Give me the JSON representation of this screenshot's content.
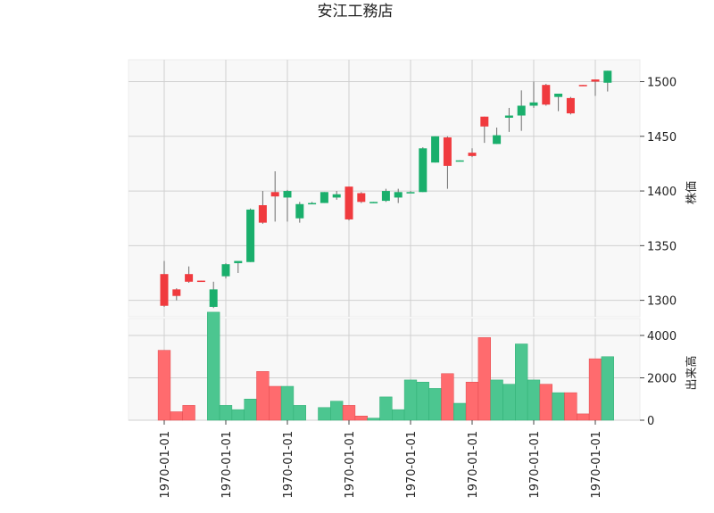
{
  "chart_data": {
    "type": "candlestick",
    "title": "安江工務店",
    "price_axis_label": "株価",
    "volume_axis_label": "出来高",
    "price_ticks": [
      1300,
      1350,
      1400,
      1450,
      1500
    ],
    "price_range": [
      1285,
      1520
    ],
    "volume_ticks": [
      0,
      2000,
      4000
    ],
    "volume_range": [
      0,
      4800
    ],
    "x_tick_labels": [
      "1970-01-01",
      "1970-01-01",
      "1970-01-01",
      "1970-01-01",
      "1970-01-01",
      "1970-01-01",
      "1970-01-01",
      "1970-01-01"
    ],
    "x_tick_positions": [
      0,
      5,
      10,
      15,
      20,
      25,
      30,
      35
    ],
    "up_color": "#1aaf6c",
    "down_color": "#f03a3e",
    "volume_up_color": "#4cc690",
    "volume_down_color": "#ff6b6e",
    "grid": true,
    "candles": [
      {
        "open": 1324,
        "high": 1336,
        "low": 1294,
        "close": 1295,
        "volume": 3300
      },
      {
        "open": 1310,
        "high": 1311,
        "low": 1300,
        "close": 1304,
        "volume": 400
      },
      {
        "open": 1324,
        "high": 1331,
        "low": 1316,
        "close": 1317,
        "volume": 700
      },
      {
        "open": 1318,
        "high": 1318,
        "low": 1317,
        "close": 1317,
        "volume": 0
      },
      {
        "open": 1294,
        "high": 1317,
        "low": 1293,
        "close": 1310,
        "volume": 5100
      },
      {
        "open": 1322,
        "high": 1334,
        "low": 1320,
        "close": 1333,
        "volume": 700
      },
      {
        "open": 1334,
        "high": 1336,
        "low": 1325,
        "close": 1336,
        "volume": 500
      },
      {
        "open": 1335,
        "high": 1384,
        "low": 1335,
        "close": 1383,
        "volume": 1000
      },
      {
        "open": 1387,
        "high": 1400,
        "low": 1370,
        "close": 1371,
        "volume": 2300
      },
      {
        "open": 1399,
        "high": 1418,
        "low": 1372,
        "close": 1395,
        "volume": 1600
      },
      {
        "open": 1394,
        "high": 1401,
        "low": 1372,
        "close": 1400,
        "volume": 1600
      },
      {
        "open": 1375,
        "high": 1390,
        "low": 1371,
        "close": 1388,
        "volume": 700
      },
      {
        "open": 1389,
        "high": 1390,
        "low": 1389,
        "close": 1389,
        "volume": 0
      },
      {
        "open": 1389,
        "high": 1399,
        "low": 1389,
        "close": 1399,
        "volume": 600
      },
      {
        "open": 1394,
        "high": 1400,
        "low": 1392,
        "close": 1397,
        "volume": 900
      },
      {
        "open": 1404,
        "high": 1404,
        "low": 1373,
        "close": 1374,
        "volume": 700
      },
      {
        "open": 1398,
        "high": 1399,
        "low": 1389,
        "close": 1390,
        "volume": 200
      },
      {
        "open": 1390,
        "high": 1390,
        "low": 1389,
        "close": 1390,
        "volume": 100
      },
      {
        "open": 1391,
        "high": 1402,
        "low": 1390,
        "close": 1400,
        "volume": 1100
      },
      {
        "open": 1394,
        "high": 1402,
        "low": 1389,
        "close": 1399,
        "volume": 500
      },
      {
        "open": 1399,
        "high": 1400,
        "low": 1399,
        "close": 1399,
        "volume": 1900
      },
      {
        "open": 1399,
        "high": 1440,
        "low": 1399,
        "close": 1439,
        "volume": 1800
      },
      {
        "open": 1426,
        "high": 1450,
        "low": 1426,
        "close": 1450,
        "volume": 1500
      },
      {
        "open": 1449,
        "high": 1450,
        "low": 1402,
        "close": 1423,
        "volume": 2200
      },
      {
        "open": 1427,
        "high": 1428,
        "low": 1427,
        "close": 1428,
        "volume": 800
      },
      {
        "open": 1435,
        "high": 1439,
        "low": 1431,
        "close": 1432,
        "volume": 1800
      },
      {
        "open": 1468,
        "high": 1468,
        "low": 1444,
        "close": 1459,
        "volume": 3900
      },
      {
        "open": 1443,
        "high": 1458,
        "low": 1443,
        "close": 1451,
        "volume": 1900
      },
      {
        "open": 1467,
        "high": 1476,
        "low": 1454,
        "close": 1469,
        "volume": 1700
      },
      {
        "open": 1469,
        "high": 1492,
        "low": 1455,
        "close": 1478,
        "volume": 3600
      },
      {
        "open": 1478,
        "high": 1500,
        "low": 1476,
        "close": 1481,
        "volume": 1900
      },
      {
        "open": 1497,
        "high": 1498,
        "low": 1478,
        "close": 1479,
        "volume": 1700
      },
      {
        "open": 1486,
        "high": 1489,
        "low": 1473,
        "close": 1489,
        "volume": 1300
      },
      {
        "open": 1485,
        "high": 1486,
        "low": 1470,
        "close": 1471,
        "volume": 1300
      },
      {
        "open": 1497,
        "high": 1497,
        "low": 1496,
        "close": 1496,
        "volume": 300
      },
      {
        "open": 1502,
        "high": 1502,
        "low": 1487,
        "close": 1500,
        "volume": 2900
      },
      {
        "open": 1499,
        "high": 1510,
        "low": 1491,
        "close": 1510,
        "volume": 3000
      }
    ]
  }
}
